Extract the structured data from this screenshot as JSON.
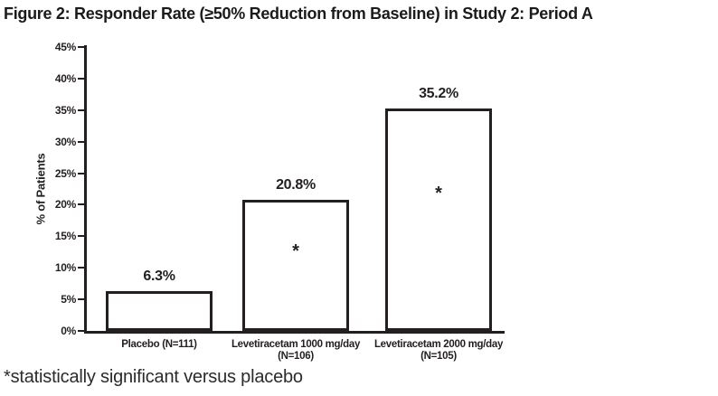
{
  "header": {
    "title": "Figure 2: Responder Rate (≥50% Reduction from Baseline) in Study 2: Period A"
  },
  "footnote": {
    "text": "*statistically significant versus placebo"
  },
  "chart_data": {
    "type": "bar",
    "title": "Figure 2: Responder Rate (≥50% Reduction from Baseline) in Study 2: Period A",
    "xlabel": "",
    "ylabel": "% of Patients",
    "ylim": [
      0,
      45
    ],
    "ytick_step": 5,
    "ytick_labels": [
      "0%",
      "5%",
      "10%",
      "15%",
      "20%",
      "25%",
      "30%",
      "35%",
      "40%",
      "45%"
    ],
    "grid": false,
    "legend": "none",
    "bar_fill": "#ffffff",
    "bar_border_color": "#231f20",
    "categories": [
      [
        "Placebo (N=111)"
      ],
      [
        "Levetiracetam 1000 mg/day",
        "(N=106)"
      ],
      [
        "Levetiracetam 2000 mg/day",
        "(N=105)"
      ]
    ],
    "values": [
      6.3,
      20.8,
      35.2
    ],
    "value_labels": [
      "6.3%",
      "20.8%",
      "35.2%"
    ],
    "significant": [
      false,
      true,
      true
    ],
    "significance_marker": "*",
    "footnote": "*statistically significant versus placebo"
  }
}
